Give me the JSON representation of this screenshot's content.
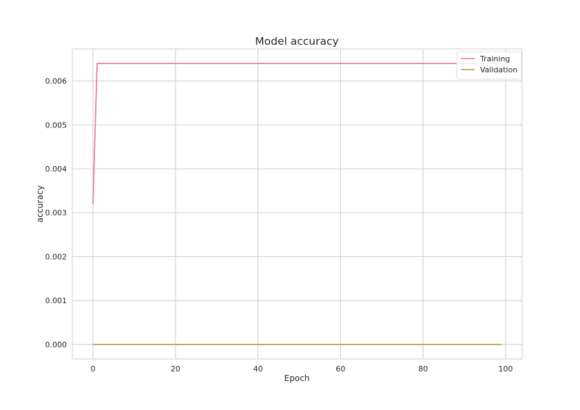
{
  "chart_data": {
    "type": "line",
    "title": "Model accuracy",
    "xlabel": "Epoch",
    "ylabel": "accuracy",
    "xlim": [
      -5,
      104
    ],
    "ylim": [
      -0.00033,
      0.00673
    ],
    "xticks": [
      0,
      20,
      40,
      60,
      80,
      100
    ],
    "xtick_labels": [
      "0",
      "20",
      "40",
      "60",
      "80",
      "100"
    ],
    "yticks": [
      0.0,
      0.001,
      0.002,
      0.003,
      0.004,
      0.005,
      0.006
    ],
    "ytick_labels": [
      "0.000",
      "0.001",
      "0.002",
      "0.003",
      "0.004",
      "0.005",
      "0.006"
    ],
    "grid": true,
    "legend_position": "upper-right",
    "series": [
      {
        "name": "Training",
        "color": "#f26d8c",
        "description": "epoch 0 value 0.0032, epochs 1-99 value 0.0064",
        "x_start": 0,
        "x_end": 99,
        "first_value": 0.0032,
        "steady_value": 0.0064
      },
      {
        "name": "Validation",
        "color": "#b09a3d",
        "x_start": 0,
        "x_end": 99,
        "first_value": 0.0,
        "steady_value": 0.0
      }
    ]
  }
}
